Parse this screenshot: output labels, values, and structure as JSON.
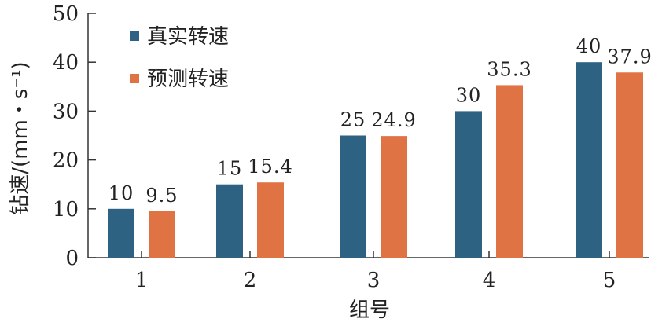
{
  "chart_data": {
    "type": "bar",
    "title": "",
    "xlabel": "组号",
    "ylabel": "钻速/(mm・s⁻¹)",
    "categories": [
      "1",
      "2",
      "3",
      "4",
      "5"
    ],
    "series": [
      {
        "name": "真实转速",
        "values": [
          10,
          15,
          25,
          30,
          40
        ],
        "labels": [
          "10",
          "15",
          "25",
          "30",
          "40"
        ],
        "color": "#2e6282"
      },
      {
        "name": "预测转速",
        "values": [
          9.5,
          15.4,
          24.9,
          35.3,
          37.9
        ],
        "labels": [
          "9.5",
          "15.4",
          "24.9",
          "35.3",
          "37.9"
        ],
        "color": "#e07344"
      }
    ],
    "ylim": [
      0,
      50
    ],
    "yticks": [
      "0",
      "10",
      "20",
      "30",
      "40",
      "50"
    ],
    "grid": false,
    "legend": "top-left"
  }
}
